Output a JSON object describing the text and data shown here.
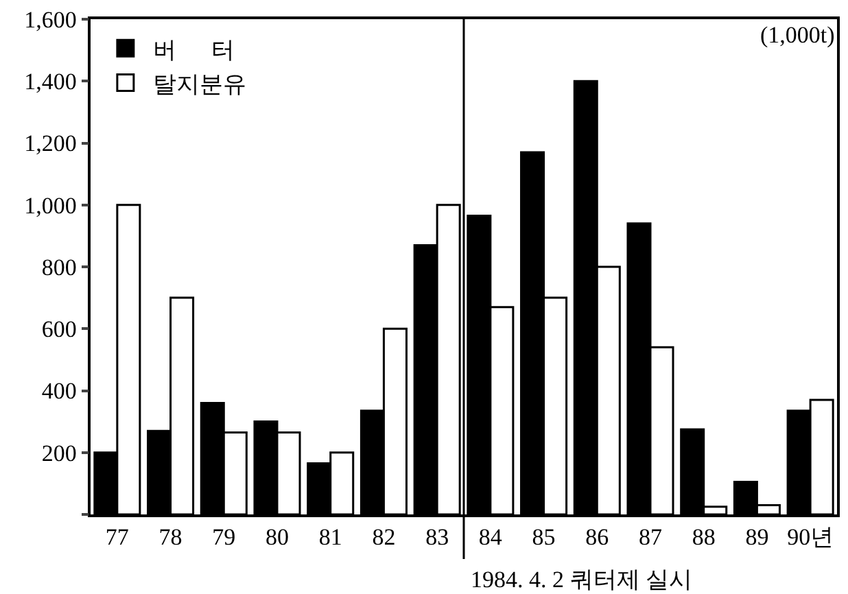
{
  "chart_data": {
    "type": "bar",
    "x": [
      77,
      78,
      79,
      80,
      81,
      82,
      83,
      84,
      85,
      86,
      87,
      88,
      89,
      90
    ],
    "xlim": [
      76.5,
      90.5
    ],
    "xticks": [
      77,
      78,
      79,
      80,
      81,
      82,
      83,
      84,
      85,
      86,
      87,
      88,
      89,
      {
        "value": 90,
        "label": "90년"
      }
    ],
    "series": [
      {
        "name": "버      터",
        "color": "#000000",
        "values": [
          200,
          270,
          360,
          300,
          165,
          335,
          870,
          965,
          1170,
          1400,
          940,
          275,
          105,
          335
        ]
      },
      {
        "name": "탈지분유",
        "color": "#ffffff",
        "values": [
          1000,
          700,
          265,
          265,
          200,
          600,
          1000,
          670,
          700,
          800,
          540,
          25,
          30,
          370
        ]
      }
    ],
    "ylim": [
      0,
      1600
    ],
    "yticks": [
      {
        "value": 0,
        "label": null
      },
      200,
      400,
      600,
      800,
      {
        "value": 1000,
        "label": "1,000"
      },
      {
        "value": 1200,
        "label": "1,200"
      },
      {
        "value": 1400,
        "label": "1,400"
      },
      {
        "value": 1600,
        "label": "1,600"
      }
    ],
    "ref_lines": [
      {
        "axis": "x",
        "value": 83.5,
        "label": "1984. 4. 2 쿼터제 실시",
        "color": "#000000"
      }
    ],
    "annotations": [
      "(1,000t)"
    ],
    "grid": false,
    "legend": "top left"
  }
}
